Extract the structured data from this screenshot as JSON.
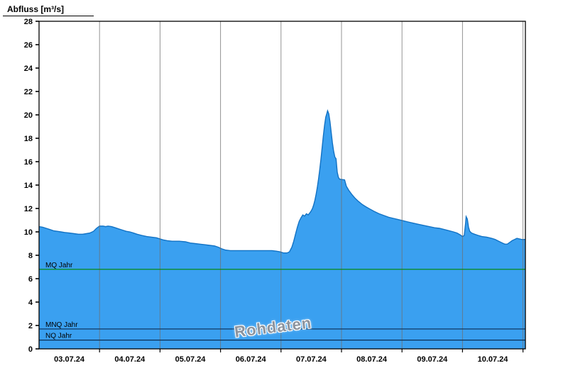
{
  "title": "Abfluss [m³/s]",
  "watermark": "Rohdaten",
  "colors": {
    "area_fill": "#3aa0f0",
    "area_stroke": "#1272c4",
    "grid": "#6f6f6f",
    "axis": "#000000",
    "mq_line": "#008800",
    "low_flow_line": "#0b2e55",
    "label_text": "#000000",
    "watermark_text": "#8d949e"
  },
  "chart_data": {
    "type": "area",
    "title": "Abfluss [m³/s]",
    "ylabel": "Abfluss [m³/s]",
    "xlabel": "",
    "x_unit": "days since 03.07.24 00:00",
    "xlim": [
      0,
      8.04
    ],
    "ylim": [
      0,
      28
    ],
    "y_ticks": [
      0,
      2,
      4,
      6,
      8,
      10,
      12,
      14,
      16,
      18,
      20,
      22,
      24,
      26,
      28
    ],
    "x_tick_labels": [
      "03.07.24",
      "04.07.24",
      "05.07.24",
      "06.07.24",
      "07.07.24",
      "08.07.24",
      "09.07.24",
      "10.07.24"
    ],
    "x_tick_label_positions": [
      0.5,
      1.5,
      2.5,
      3.5,
      4.5,
      5.5,
      6.5,
      7.5
    ],
    "x_gridline_positions": [
      1,
      2,
      3,
      4,
      5,
      6,
      7,
      8
    ],
    "grid": "vertical-only",
    "legend_position": "none",
    "reference_lines": [
      {
        "label": "MQ Jahr",
        "value": 6.8,
        "color": "#008800"
      },
      {
        "label": "MNQ Jahr",
        "value": 1.7,
        "color": "#0b2e55"
      },
      {
        "label": "NQ Jahr",
        "value": 0.75,
        "color": "#0b2e55"
      }
    ],
    "series": [
      {
        "name": "Rohdaten",
        "points": [
          [
            0,
            10.45
          ],
          [
            0.06,
            10.4
          ],
          [
            0.12,
            10.3
          ],
          [
            0.18,
            10.2
          ],
          [
            0.24,
            10.1
          ],
          [
            0.3,
            10.05
          ],
          [
            0.36,
            10
          ],
          [
            0.42,
            9.95
          ],
          [
            0.5,
            9.9
          ],
          [
            0.58,
            9.85
          ],
          [
            0.65,
            9.8
          ],
          [
            0.72,
            9.8
          ],
          [
            0.78,
            9.85
          ],
          [
            0.84,
            9.9
          ],
          [
            0.9,
            10.05
          ],
          [
            0.95,
            10.3
          ],
          [
            1,
            10.5
          ],
          [
            1.06,
            10.5
          ],
          [
            1.1,
            10.45
          ],
          [
            1.14,
            10.5
          ],
          [
            1.2,
            10.45
          ],
          [
            1.26,
            10.35
          ],
          [
            1.32,
            10.25
          ],
          [
            1.38,
            10.15
          ],
          [
            1.44,
            10.05
          ],
          [
            1.5,
            10
          ],
          [
            1.56,
            9.9
          ],
          [
            1.62,
            9.8
          ],
          [
            1.7,
            9.7
          ],
          [
            1.78,
            9.6
          ],
          [
            1.86,
            9.55
          ],
          [
            1.94,
            9.5
          ],
          [
            2,
            9.4
          ],
          [
            2.06,
            9.3
          ],
          [
            2.12,
            9.25
          ],
          [
            2.2,
            9.2
          ],
          [
            2.32,
            9.2
          ],
          [
            2.42,
            9.15
          ],
          [
            2.5,
            9.05
          ],
          [
            2.58,
            9
          ],
          [
            2.66,
            8.95
          ],
          [
            2.74,
            8.9
          ],
          [
            2.82,
            8.85
          ],
          [
            2.9,
            8.8
          ],
          [
            2.96,
            8.7
          ],
          [
            3.02,
            8.55
          ],
          [
            3.08,
            8.45
          ],
          [
            3.16,
            8.4
          ],
          [
            3.4,
            8.4
          ],
          [
            3.65,
            8.4
          ],
          [
            3.85,
            8.4
          ],
          [
            3.92,
            8.35
          ],
          [
            3.98,
            8.3
          ],
          [
            4.04,
            8.2
          ],
          [
            4.1,
            8.2
          ],
          [
            4.14,
            8.3
          ],
          [
            4.18,
            8.7
          ],
          [
            4.21,
            9.2
          ],
          [
            4.24,
            9.8
          ],
          [
            4.27,
            10.4
          ],
          [
            4.3,
            10.9
          ],
          [
            4.33,
            11.2
          ],
          [
            4.36,
            11.45
          ],
          [
            4.39,
            11.35
          ],
          [
            4.42,
            11.55
          ],
          [
            4.45,
            11.45
          ],
          [
            4.48,
            11.65
          ],
          [
            4.5,
            11.8
          ],
          [
            4.52,
            12
          ],
          [
            4.54,
            12.3
          ],
          [
            4.56,
            12.7
          ],
          [
            4.58,
            13.2
          ],
          [
            4.6,
            13.8
          ],
          [
            4.62,
            14.5
          ],
          [
            4.64,
            15.3
          ],
          [
            4.66,
            16.2
          ],
          [
            4.68,
            17.2
          ],
          [
            4.7,
            18.2
          ],
          [
            4.72,
            19.1
          ],
          [
            4.74,
            19.8
          ],
          [
            4.76,
            20.15
          ],
          [
            4.77,
            20.35
          ],
          [
            4.79,
            20.1
          ],
          [
            4.81,
            19.4
          ],
          [
            4.83,
            18.5
          ],
          [
            4.85,
            17.6
          ],
          [
            4.87,
            16.9
          ],
          [
            4.89,
            16.4
          ],
          [
            4.91,
            16.25
          ],
          [
            4.93,
            15.1
          ],
          [
            4.95,
            14.65
          ],
          [
            4.97,
            14.5
          ],
          [
            5.05,
            14.45
          ],
          [
            5.08,
            13.9
          ],
          [
            5.12,
            13.55
          ],
          [
            5.17,
            13.2
          ],
          [
            5.22,
            12.9
          ],
          [
            5.28,
            12.6
          ],
          [
            5.34,
            12.35
          ],
          [
            5.4,
            12.15
          ],
          [
            5.47,
            11.95
          ],
          [
            5.54,
            11.75
          ],
          [
            5.62,
            11.55
          ],
          [
            5.7,
            11.4
          ],
          [
            5.78,
            11.25
          ],
          [
            5.86,
            11.15
          ],
          [
            5.94,
            11.05
          ],
          [
            6.02,
            10.95
          ],
          [
            6.1,
            10.85
          ],
          [
            6.18,
            10.75
          ],
          [
            6.27,
            10.65
          ],
          [
            6.36,
            10.55
          ],
          [
            6.45,
            10.45
          ],
          [
            6.54,
            10.35
          ],
          [
            6.62,
            10.3
          ],
          [
            6.7,
            10.2
          ],
          [
            6.78,
            10.1
          ],
          [
            6.85,
            10
          ],
          [
            6.91,
            9.9
          ],
          [
            6.96,
            9.75
          ],
          [
            7,
            9.6
          ],
          [
            7.03,
            9.7
          ],
          [
            7.05,
            10.7
          ],
          [
            7.06,
            11.3
          ],
          [
            7.08,
            11.1
          ],
          [
            7.1,
            10.4
          ],
          [
            7.12,
            10.05
          ],
          [
            7.15,
            9.9
          ],
          [
            7.2,
            9.8
          ],
          [
            7.26,
            9.7
          ],
          [
            7.32,
            9.6
          ],
          [
            7.4,
            9.55
          ],
          [
            7.48,
            9.45
          ],
          [
            7.54,
            9.35
          ],
          [
            7.6,
            9.2
          ],
          [
            7.66,
            9.05
          ],
          [
            7.7,
            8.95
          ],
          [
            7.74,
            8.95
          ],
          [
            7.78,
            9.1
          ],
          [
            7.82,
            9.25
          ],
          [
            7.86,
            9.35
          ],
          [
            7.9,
            9.45
          ],
          [
            7.94,
            9.4
          ],
          [
            7.98,
            9.35
          ],
          [
            8.04,
            9.35
          ]
        ]
      }
    ],
    "annotations": [
      {
        "text": "Rohdaten",
        "style": "watermark"
      }
    ]
  }
}
